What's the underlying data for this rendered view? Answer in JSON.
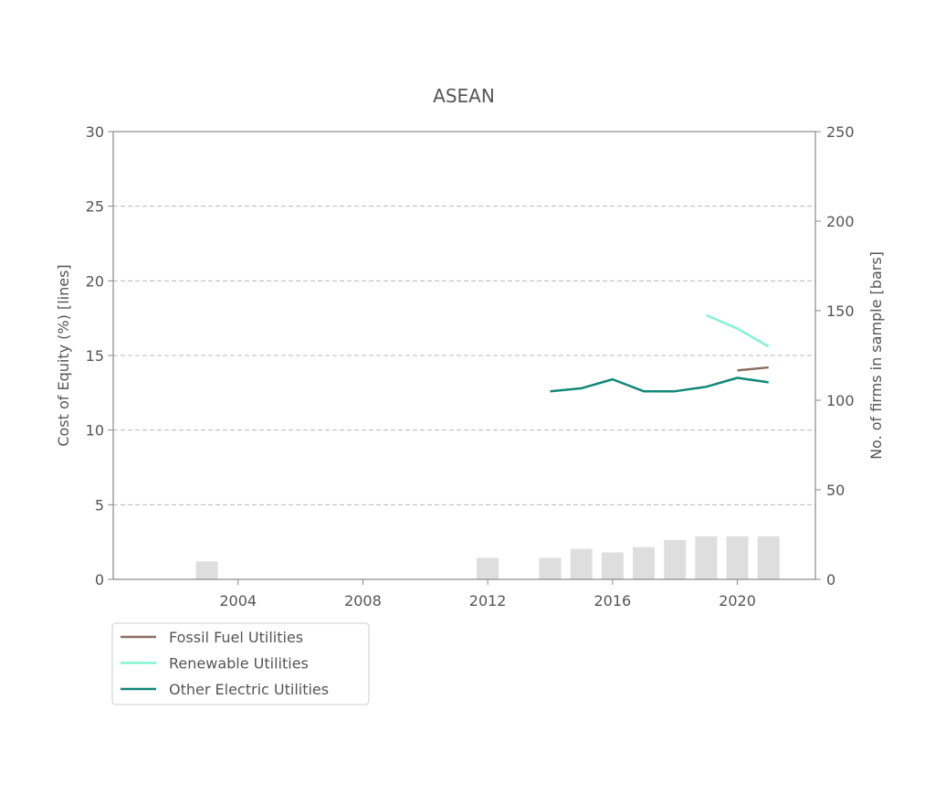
{
  "chart_data": {
    "type": "line",
    "title": "ASEAN",
    "ylabel": "Cost of Equity (%) [lines]",
    "y2label": "No. of firms in sample [bars]",
    "xlim": [
      2000,
      2022.5
    ],
    "ylim": [
      0,
      30
    ],
    "y2lim": [
      0,
      250
    ],
    "xticks": [
      2004,
      2008,
      2012,
      2016,
      2020
    ],
    "yticks": [
      0,
      5,
      10,
      15,
      20,
      25,
      30
    ],
    "y2ticks": [
      0,
      50,
      100,
      150,
      200,
      250
    ],
    "grid": "horizontal dashed",
    "legend_position": "below-left",
    "series": [
      {
        "name": "Fossil Fuel Utilities",
        "color": "#8c6d62",
        "x": [
          2020,
          2021
        ],
        "values": [
          14.0,
          14.2
        ]
      },
      {
        "name": "Renewable Utilities",
        "color": "#7ff5d0",
        "x": [
          2019,
          2020,
          2021
        ],
        "values": [
          17.7,
          16.8,
          15.6
        ]
      },
      {
        "name": "Other Electric Utilities",
        "color": "#11877a",
        "x": [
          2014,
          2015,
          2016,
          2017,
          2018,
          2019,
          2020,
          2021
        ],
        "values": [
          12.6,
          12.8,
          13.4,
          12.6,
          12.6,
          12.9,
          13.5,
          13.2
        ]
      }
    ],
    "bars": {
      "color": "#dedede",
      "x": [
        2003,
        2012,
        2014,
        2015,
        2016,
        2017,
        2018,
        2019,
        2020,
        2021
      ],
      "values": [
        10,
        12,
        12,
        17,
        15,
        18,
        22,
        24,
        24,
        24
      ]
    }
  }
}
